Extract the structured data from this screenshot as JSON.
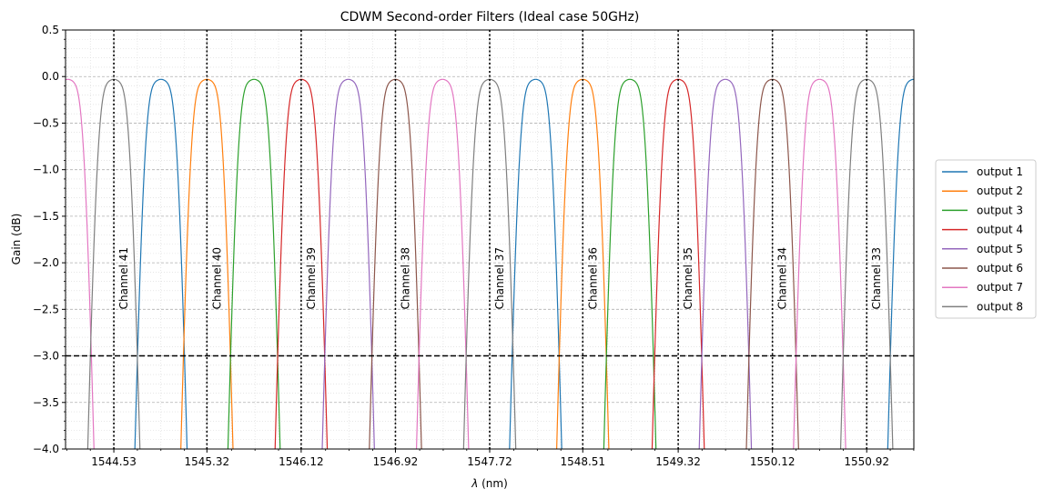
{
  "chart_data": {
    "type": "line",
    "title": "CDWM Second-order Filters (Ideal case 50GHz)",
    "xlabel_prefix": "λ",
    "xlabel_unit": "(nm)",
    "ylabel": "Gain (dB)",
    "xlim": [
      1544.12,
      1551.32
    ],
    "ylim": [
      -4.0,
      0.5
    ],
    "xticks": [
      {
        "value": 1544.53,
        "label": "1544.53"
      },
      {
        "value": 1545.32,
        "label": "1545.32"
      },
      {
        "value": 1546.12,
        "label": "1546.12"
      },
      {
        "value": 1546.92,
        "label": "1546.92"
      },
      {
        "value": 1547.72,
        "label": "1547.72"
      },
      {
        "value": 1548.51,
        "label": "1548.51"
      },
      {
        "value": 1549.32,
        "label": "1549.32"
      },
      {
        "value": 1550.12,
        "label": "1550.12"
      },
      {
        "value": 1550.92,
        "label": "1550.92"
      }
    ],
    "yticks": [
      {
        "value": 0.5,
        "label": "0.5"
      },
      {
        "value": 0.0,
        "label": "0.0"
      },
      {
        "value": -0.5,
        "label": "−0.5"
      },
      {
        "value": -1.0,
        "label": "−1.0"
      },
      {
        "value": -1.5,
        "label": "−1.5"
      },
      {
        "value": -2.0,
        "label": "−2.0"
      },
      {
        "value": -2.5,
        "label": "−2.5"
      },
      {
        "value": -3.0,
        "label": "−3.0"
      },
      {
        "value": -3.5,
        "label": "−3.5"
      },
      {
        "value": -4.0,
        "label": "−4.0"
      }
    ],
    "grid": true,
    "legend_position": "right",
    "threshold_line": -3.0,
    "channels": [
      {
        "label": "Channel 41",
        "wavelength": 1544.53
      },
      {
        "label": "Channel 40",
        "wavelength": 1545.32
      },
      {
        "label": "Channel 39",
        "wavelength": 1546.12
      },
      {
        "label": "Channel 38",
        "wavelength": 1546.92
      },
      {
        "label": "Channel 37",
        "wavelength": 1547.72
      },
      {
        "label": "Channel 36",
        "wavelength": 1548.51
      },
      {
        "label": "Channel 35",
        "wavelength": 1549.32
      },
      {
        "label": "Channel 34",
        "wavelength": 1550.12
      },
      {
        "label": "Channel 33",
        "wavelength": 1550.92
      }
    ],
    "passband": {
      "center_peak_db": -0.03,
      "ripple_db": 0.03,
      "minus3db_halfwidth_nm": 0.2
    },
    "series": [
      {
        "name": "output 1",
        "color": "#1f77b4",
        "centers": [
          1544.93,
          1548.11,
          1551.32
        ]
      },
      {
        "name": "output 2",
        "color": "#ff7f0e",
        "centers": [
          1545.32,
          1548.51
        ]
      },
      {
        "name": "output 3",
        "color": "#2ca02c",
        "centers": [
          1545.72,
          1548.91
        ]
      },
      {
        "name": "output 4",
        "color": "#d62728",
        "centers": [
          1546.12,
          1549.32
        ]
      },
      {
        "name": "output 5",
        "color": "#9467bd",
        "centers": [
          1546.52,
          1549.72
        ]
      },
      {
        "name": "output 6",
        "color": "#8c564b",
        "centers": [
          1546.92,
          1550.12
        ]
      },
      {
        "name": "output 7",
        "color": "#e377c2",
        "centers": [
          1544.14,
          1547.32,
          1550.52
        ]
      },
      {
        "name": "output 8",
        "color": "#7f7f7f",
        "centers": [
          1544.53,
          1547.72,
          1550.92
        ]
      }
    ]
  }
}
